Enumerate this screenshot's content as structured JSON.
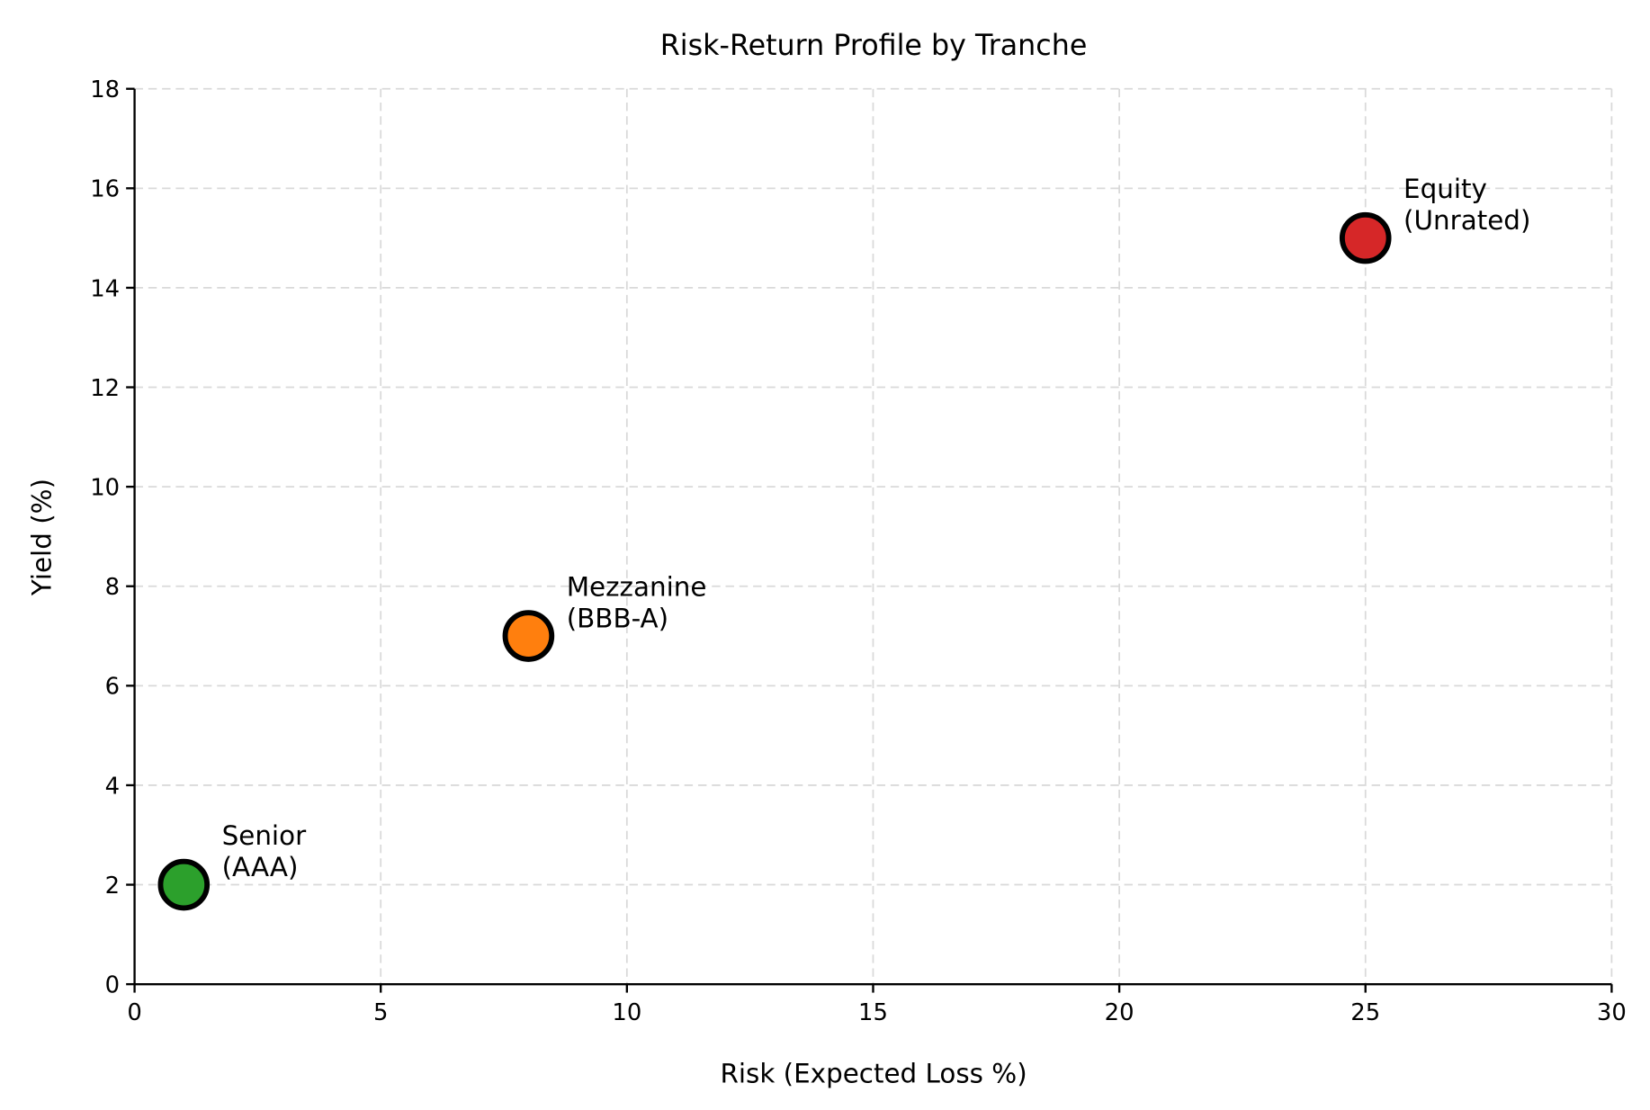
{
  "chart_data": {
    "type": "scatter",
    "title": "Risk-Return Profile by Tranche",
    "xlabel": "Risk (Expected Loss %)",
    "ylabel": "Yield (%)",
    "xlim": [
      0,
      30
    ],
    "ylim": [
      0,
      18
    ],
    "xticks": [
      0,
      5,
      10,
      15,
      20,
      25,
      30
    ],
    "yticks": [
      0,
      2,
      4,
      6,
      8,
      10,
      12,
      14,
      16,
      18
    ],
    "grid": true,
    "points": [
      {
        "x": 1,
        "y": 2,
        "label_line1": "Senior",
        "label_line2": "(AAA)",
        "color": "#2ca02c"
      },
      {
        "x": 8,
        "y": 7,
        "label_line1": "Mezzanine",
        "label_line2": "(BBB-A)",
        "color": "#ff7f0e"
      },
      {
        "x": 25,
        "y": 15,
        "label_line1": "Equity",
        "label_line2": "(Unrated)",
        "color": "#d62728"
      }
    ]
  }
}
